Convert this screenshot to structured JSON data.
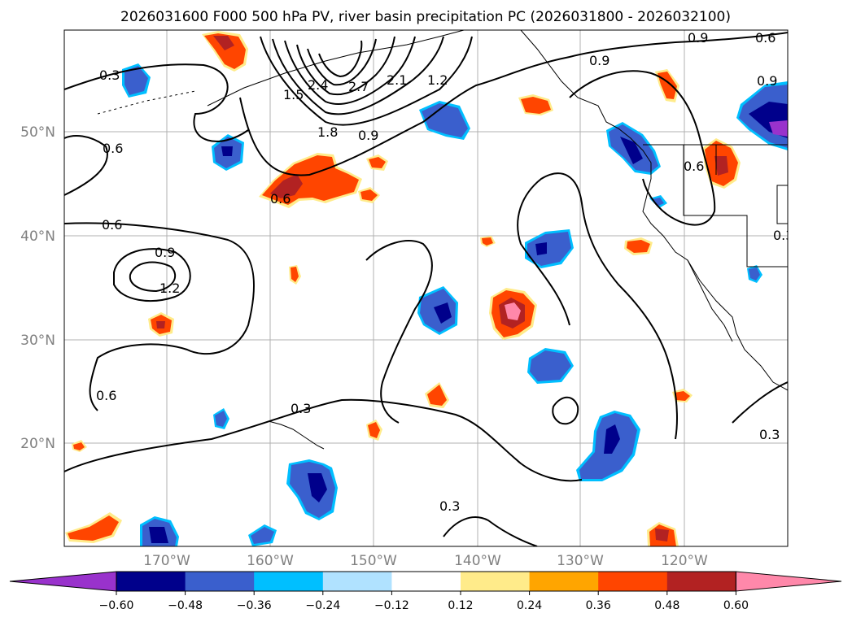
{
  "title": "2026031600 F000 500 hPa PV, river basin precipitation PC (2026031800 - 2026032100)",
  "lat_labels": [
    "50°N",
    "40°N",
    "30°N",
    "20°N"
  ],
  "lon_labels": [
    "170°W",
    "160°W",
    "150°W",
    "140°W",
    "130°W",
    "120°W"
  ],
  "colorbar": {
    "tick_labels": [
      "−0.60",
      "−0.48",
      "−0.36",
      "−0.24",
      "−0.12",
      "0.12",
      "0.24",
      "0.36",
      "0.48",
      "0.60"
    ],
    "colors": [
      "#9932cc",
      "#00008b",
      "#3a5fcd",
      "#00bfff",
      "#b0e2ff",
      "#ffffff",
      "#ffeb8a",
      "#ffa500",
      "#ff4500",
      "#b22222",
      "#ff88aa"
    ]
  },
  "contour_labels": [
    "0.3",
    "0.6",
    "0.9",
    "1.2",
    "1.5",
    "1.8",
    "2.1",
    "2.4",
    "2.7"
  ],
  "colors": {
    "land_outline": "#000000",
    "grid": "#b0b0b0"
  }
}
